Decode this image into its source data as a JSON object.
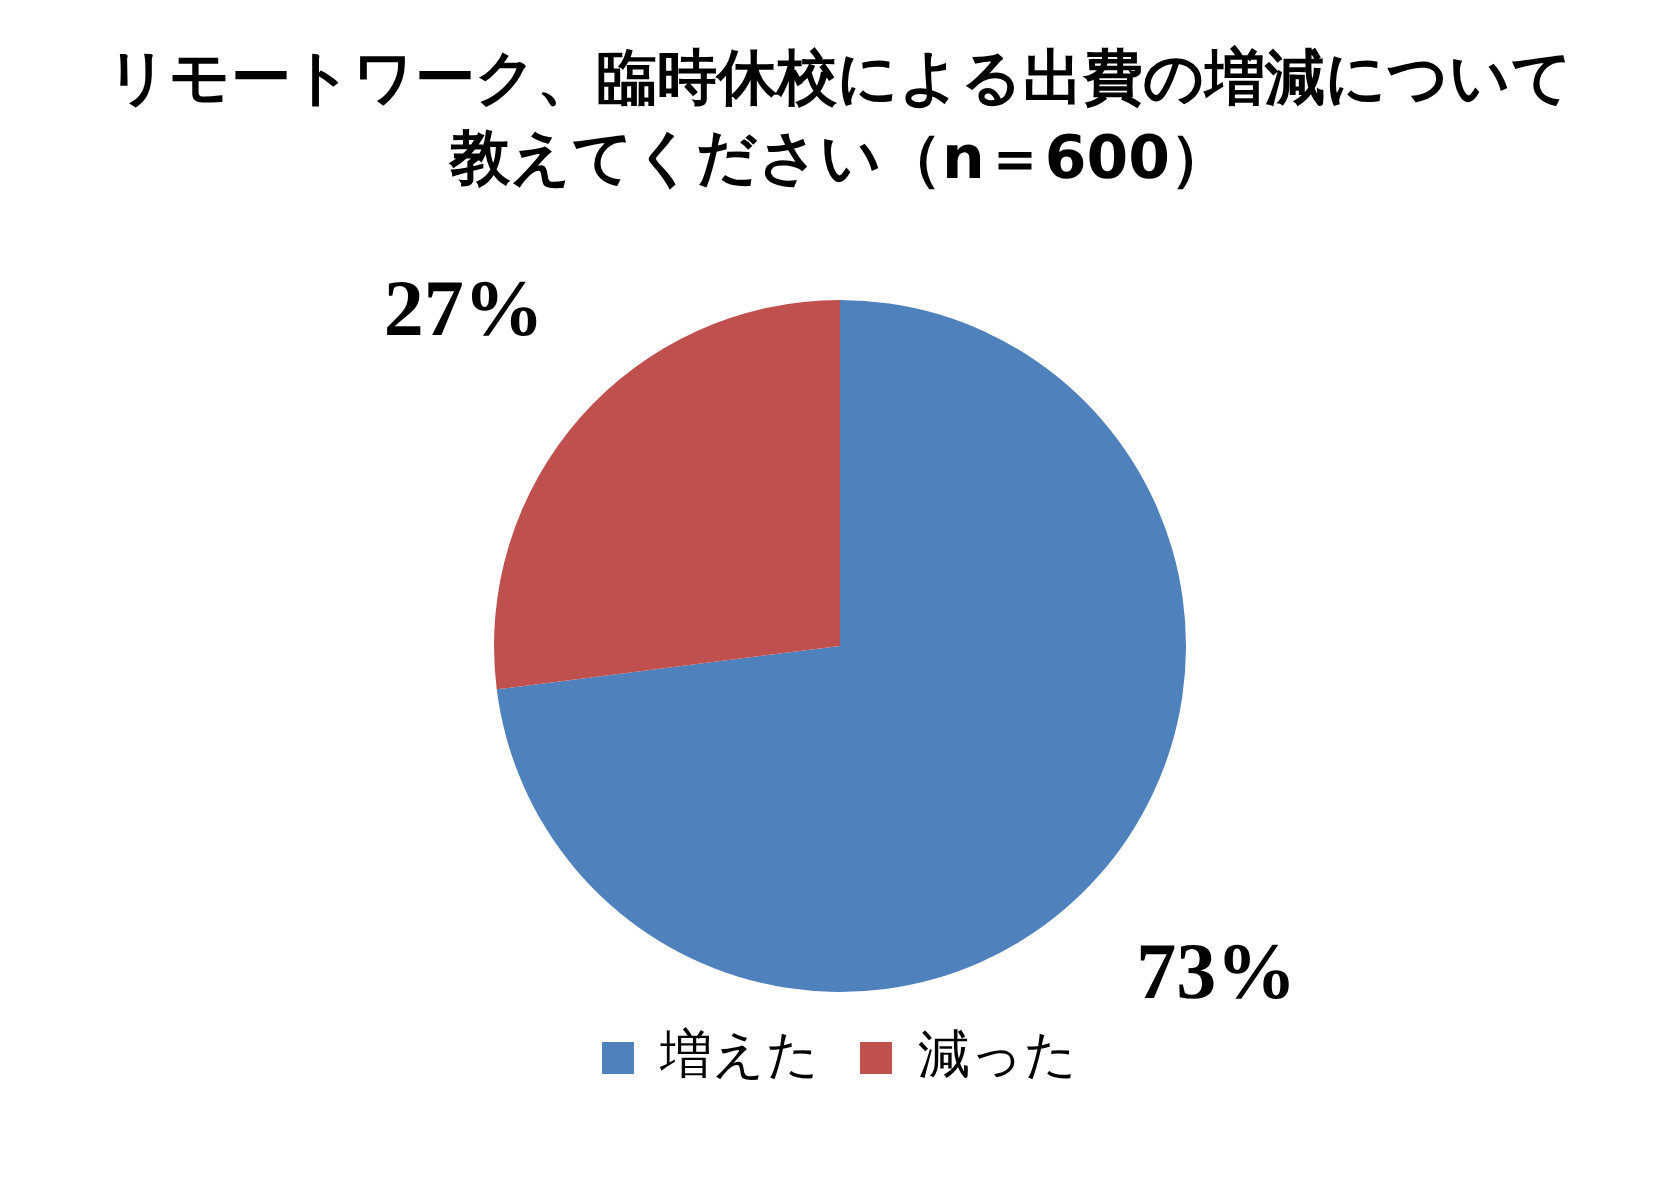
{
  "chart_data": {
    "type": "pie",
    "title": "リモートワーク、臨時休校による出費の増減について教えてください（n＝600）",
    "categories": [
      "増えた",
      "減った"
    ],
    "values": [
      73,
      27
    ],
    "colors": [
      "#4f81bd",
      "#c0504d"
    ],
    "value_labels": [
      "73%",
      "27%"
    ],
    "legend": "bottom"
  }
}
